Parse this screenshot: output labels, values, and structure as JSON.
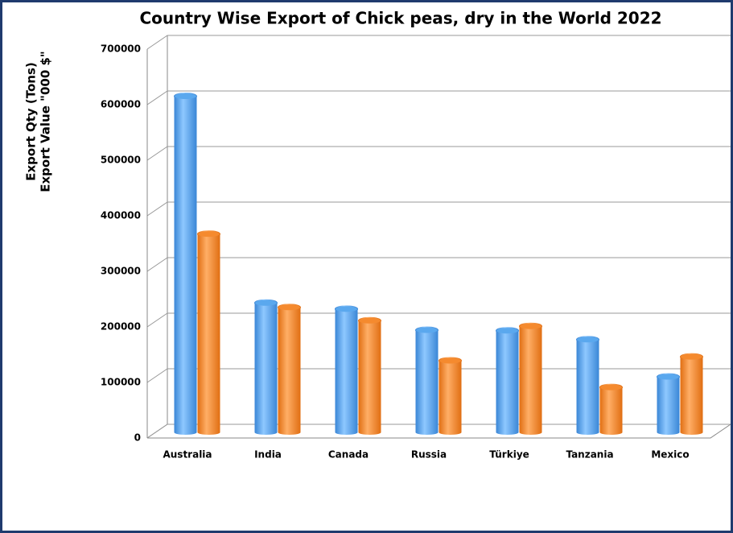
{
  "chart_data": {
    "type": "bar",
    "title": "Country Wise Export of Chick peas, dry in the World 2022",
    "y_label": [
      "Export Qty (Tons)",
      "Export Value \"000 $\""
    ],
    "categories": [
      "Australia",
      "India",
      "Canada",
      "Russia",
      "Türkiye",
      "Tanzania",
      "Mexico"
    ],
    "series": [
      {
        "color": "#5aa8ee",
        "values": [
          605000,
          233000,
          222000,
          184000,
          183000,
          167000,
          100000
        ]
      },
      {
        "color": "#f58a2e",
        "values": [
          357000,
          225000,
          201000,
          129000,
          191000,
          81000,
          136000
        ]
      }
    ],
    "ylim": [
      0,
      700000
    ],
    "yticks": [
      0,
      100000,
      200000,
      300000,
      400000,
      500000,
      600000,
      700000
    ],
    "grid": true
  }
}
